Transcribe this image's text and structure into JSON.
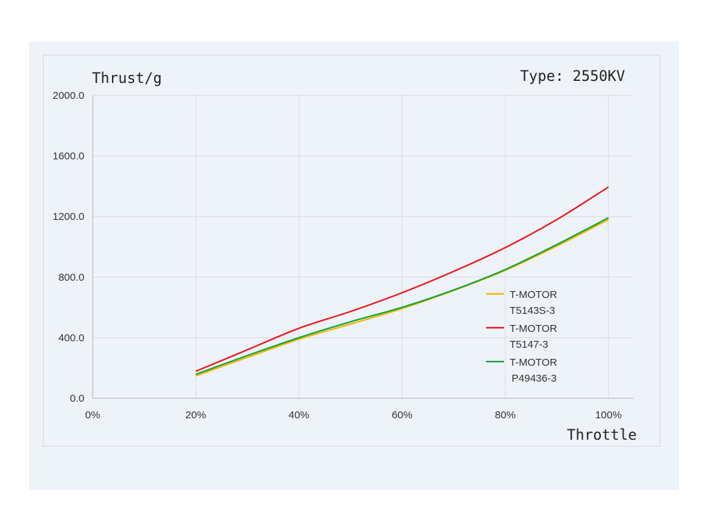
{
  "chart_data": {
    "type": "line",
    "ylabel": "Thrust/g",
    "xlabel": "Throttle",
    "annotation": "Type: 2550KV",
    "xlim": [
      0,
      100
    ],
    "ylim": [
      0,
      2000
    ],
    "x_ticks": [
      0,
      20,
      40,
      60,
      80,
      100
    ],
    "x_tick_labels": [
      "0%",
      "20%",
      "40%",
      "60%",
      "80%",
      "100%"
    ],
    "y_ticks": [
      0,
      400,
      800,
      1200,
      1600,
      2000
    ],
    "y_tick_labels": [
      "0.0",
      "400.0",
      "800.0",
      "1200.0",
      "1600.0",
      "2000.0"
    ],
    "grid": true,
    "legend_position": "right",
    "x": [
      20,
      30,
      40,
      50,
      60,
      70,
      80,
      90,
      100
    ],
    "series": [
      {
        "name_lines": [
          "T-MOTOR",
          "T5143S-3"
        ],
        "color": "#f5b400",
        "values": [
          148,
          270,
          390,
          490,
          592,
          712,
          845,
          1005,
          1180
        ]
      },
      {
        "name_lines": [
          "T-MOTOR",
          "T5147-3"
        ],
        "color": "#e8191c",
        "values": [
          178,
          320,
          462,
          573,
          697,
          838,
          995,
          1180,
          1395
        ]
      },
      {
        "name_lines": [
          "T-MOTOR",
          "P49436-3"
        ],
        "color": "#13a538",
        "values": [
          158,
          282,
          400,
          505,
          600,
          715,
          850,
          1015,
          1192
        ]
      }
    ]
  }
}
